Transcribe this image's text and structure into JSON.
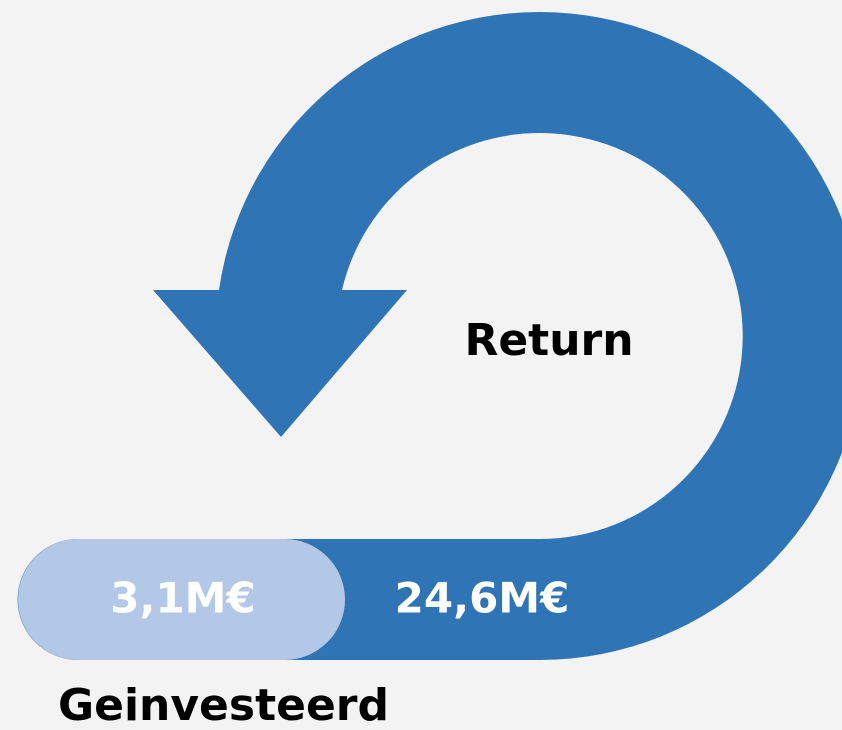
{
  "return_label": "Return",
  "invested_value": "3,1M€",
  "return_value": "24,6M€",
  "invested_label": "Geinvesteerd"
}
